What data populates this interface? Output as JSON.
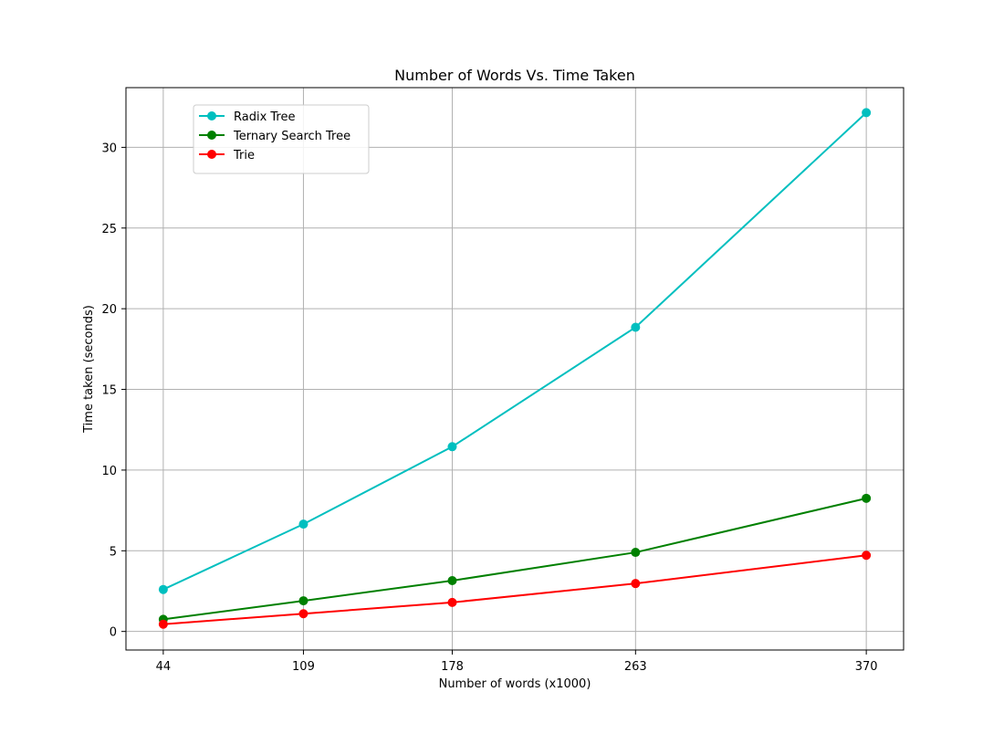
{
  "chart_data": {
    "type": "line",
    "title": "Number of Words Vs. Time Taken",
    "xlabel": "Number of words (x1000)",
    "ylabel": "Time taken (seconds)",
    "x": [
      44,
      109,
      178,
      263,
      370
    ],
    "xticks": [
      "44",
      "109",
      "178",
      "263",
      "370"
    ],
    "yticks": [
      0,
      5,
      10,
      15,
      20,
      25,
      30
    ],
    "xlim": [
      26.7,
      387.3
    ],
    "ylim": [
      -1.15,
      33.7
    ],
    "grid": true,
    "legend_position": "upper-left",
    "series": [
      {
        "name": "Radix Tree",
        "color": "#00bfbf",
        "values": [
          2.6,
          6.65,
          11.45,
          18.85,
          32.15
        ]
      },
      {
        "name": "Ternary Search Tree",
        "color": "#008000",
        "values": [
          0.75,
          1.9,
          3.15,
          4.9,
          8.25
        ]
      },
      {
        "name": "Trie",
        "color": "#ff0000",
        "values": [
          0.45,
          1.1,
          1.8,
          2.97,
          4.72
        ]
      }
    ]
  }
}
